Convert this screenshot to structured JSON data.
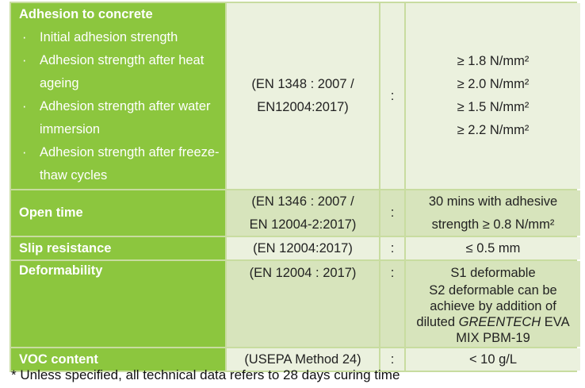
{
  "rows": [
    {
      "label": "Adhesion to concrete",
      "items": [
        "Initial adhesion strength",
        "Adhesion strength after heat ageing",
        "Adhesion strength after water immersion",
        "Adhesion strength after freeze-thaw cycles"
      ],
      "method": [
        "(EN 1348 : 2007 /",
        "EN12004:2017)"
      ],
      "sep": ":",
      "values": [
        "≥ 1.8 N/mm²",
        "≥ 2.0 N/mm²",
        "≥ 1.5 N/mm²",
        "≥ 2.2 N/mm²"
      ]
    },
    {
      "label": "Open time",
      "method": [
        "(EN 1346 : 2007 /",
        "EN 12004-2:2017)"
      ],
      "sep": ":",
      "values": [
        "30 mins with adhesive",
        "strength ≥ 0.8 N/mm²"
      ]
    },
    {
      "label": "Slip resistance",
      "method": [
        "(EN 12004:2017)"
      ],
      "sep": ":",
      "values": [
        "≤ 0.5 mm"
      ]
    },
    {
      "label": "Deformability",
      "method": [
        "(EN 12004 : 2017)"
      ],
      "sep": ":",
      "values": [
        "S1 deformable"
      ],
      "note_pre": "S2 deformable can be achieve by addition of diluted ",
      "note_brand": "GREENTECH",
      "note_post": "EVA MIX PBM-19"
    },
    {
      "label": "VOC content",
      "method": [
        "(USEPA Method 24)"
      ],
      "sep": ":",
      "values": [
        "< 10 g/L"
      ]
    }
  ],
  "footnote": "* Unless specified, all technical data refers to 28 days curing time"
}
